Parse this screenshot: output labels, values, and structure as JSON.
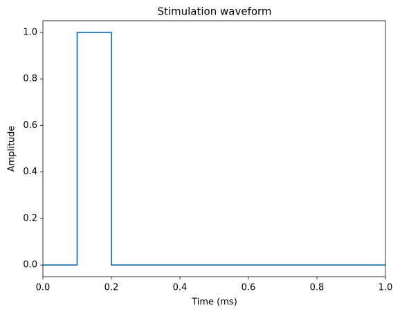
{
  "chart_data": {
    "type": "line",
    "title": "Stimulation waveform",
    "x_label": "Time (ms)",
    "y_label": "Amplitude",
    "x": [
      0,
      0.1,
      0.1,
      0.2,
      0.2,
      1.0
    ],
    "values": [
      0,
      0,
      1,
      1,
      0,
      0
    ],
    "color": "#1f77b4",
    "xlim": [
      0,
      1
    ],
    "ylim": [
      -0.05,
      1.05
    ],
    "xticks": [
      {
        "value": 0,
        "label": "0.0"
      },
      0.2,
      0.4,
      0.6,
      0.8,
      {
        "value": 1,
        "label": "1.0"
      }
    ],
    "yticks": [
      {
        "value": 0,
        "label": "0.0"
      },
      0.2,
      0.4,
      0.6,
      0.8,
      {
        "value": 1,
        "label": "1.0"
      }
    ],
    "grid": false
  }
}
